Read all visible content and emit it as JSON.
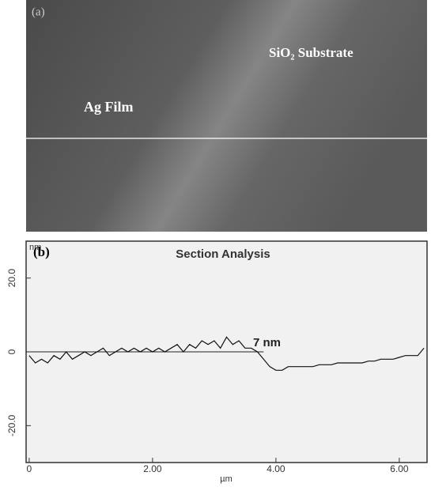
{
  "image": {
    "label": "(a)",
    "regions": [
      "SiO₂ Substrate",
      "Ag Film"
    ]
  },
  "chart_data": {
    "type": "line",
    "panel_label": "(b)",
    "title": "Section Analysis",
    "annotation": "7 nm",
    "y_unit": "nm",
    "x_label": "µm",
    "x": [
      0,
      0.1,
      0.2,
      0.3,
      0.4,
      0.5,
      0.6,
      0.7,
      0.8,
      0.9,
      1.0,
      1.1,
      1.2,
      1.3,
      1.4,
      1.5,
      1.6,
      1.7,
      1.8,
      1.9,
      2.0,
      2.1,
      2.2,
      2.3,
      2.4,
      2.5,
      2.6,
      2.7,
      2.8,
      2.9,
      3.0,
      3.1,
      3.2,
      3.3,
      3.4,
      3.5,
      3.6,
      3.7,
      3.8,
      3.9,
      4.0,
      4.1,
      4.2,
      4.3,
      4.4,
      4.5,
      4.6,
      4.7,
      4.8,
      4.9,
      5.0,
      5.1,
      5.2,
      5.3,
      5.4,
      5.5,
      5.6,
      5.7,
      5.8,
      5.9,
      6.0,
      6.1,
      6.2,
      6.3,
      6.4
    ],
    "series": [
      {
        "color": "#111111",
        "values": [
          -1,
          -3,
          -2,
          -3,
          -1,
          -2,
          0,
          -2,
          -1,
          0,
          -1,
          0,
          1,
          -1,
          0,
          1,
          0,
          1,
          0,
          1,
          0,
          1,
          0,
          1,
          2,
          0,
          2,
          1,
          3,
          2,
          3,
          1,
          4,
          2,
          3,
          1,
          1,
          0,
          -2,
          -4,
          -5,
          -5,
          -4,
          -4,
          -4,
          -4,
          -4,
          -3.5,
          -3.5,
          -3.5,
          -3,
          -3,
          -3,
          -3,
          -3,
          -2.5,
          -2.5,
          -2,
          -2,
          -2,
          -1.5,
          -1,
          -1,
          -1,
          1
        ]
      }
    ],
    "xlim": [
      -0.05,
      6.45
    ],
    "ylim": [
      -30,
      30
    ],
    "xticks": [
      0,
      {
        "value": 2,
        "label": "2.00"
      },
      {
        "value": 4,
        "label": "4.00"
      },
      {
        "value": 6,
        "label": "6.00"
      }
    ],
    "yticks": [
      {
        "value": -20,
        "label": "-20.0"
      },
      0,
      {
        "value": 20,
        "label": "20.0"
      }
    ]
  }
}
